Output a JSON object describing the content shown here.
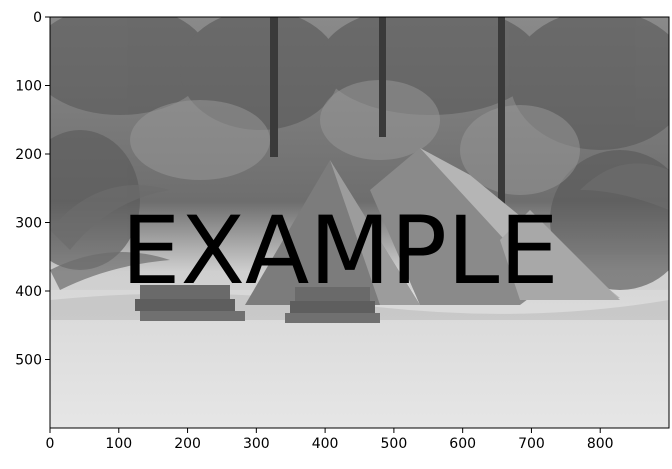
{
  "chart_data": {
    "type": "image",
    "xlim": [
      0,
      900
    ],
    "ylim": [
      600,
      0
    ],
    "x_ticks": [
      0,
      100,
      200,
      300,
      400,
      500,
      600,
      700,
      800
    ],
    "y_ticks": [
      0,
      100,
      200,
      300,
      400,
      500
    ],
    "x_tick_labels": [
      "0",
      "100",
      "200",
      "300",
      "400",
      "500",
      "600",
      "700",
      "800"
    ],
    "y_tick_labels": [
      "0",
      "100",
      "200",
      "300",
      "400",
      "500"
    ],
    "grid": false,
    "image_content": "grayscale-jungle-pyramids-photo",
    "watermark_text": "EXAMPLE"
  }
}
